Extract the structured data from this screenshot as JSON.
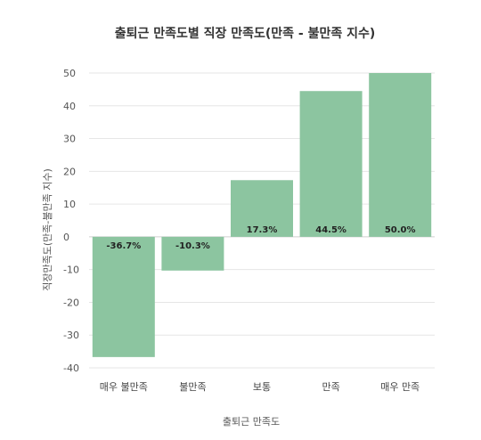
{
  "chart_data": {
    "type": "bar",
    "title": "출퇴근 만족도별 직장 만족도(만족 - 불만족 지수)",
    "xlabel": "출퇴근 만족도",
    "ylabel": "직장만족도(만족-불만족 지수)",
    "categories": [
      "매우 불만족",
      "불만족",
      "보통",
      "만족",
      "매우 만족"
    ],
    "values": [
      -36.7,
      -10.3,
      17.3,
      44.5,
      50.0
    ],
    "data_labels": [
      "-36.7%",
      "-10.3%",
      "17.3%",
      "44.5%",
      "50.0%"
    ],
    "yticks": [
      50,
      40,
      30,
      20,
      10,
      0,
      -10,
      -20,
      -30,
      -40
    ],
    "ylim": [
      -40,
      50
    ],
    "bar_color": "#8cc5a0",
    "grid": true,
    "legend": "none"
  }
}
